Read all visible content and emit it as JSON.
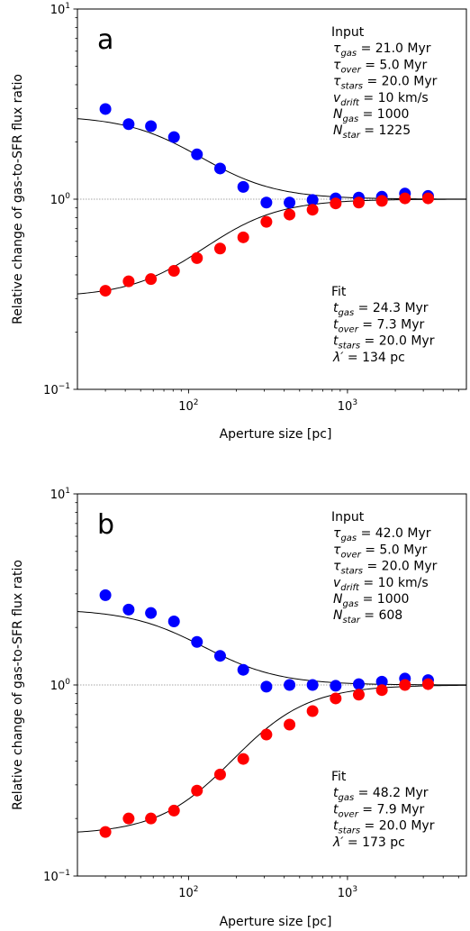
{
  "chart_data": [
    {
      "type": "scatter",
      "panel_label": "a",
      "xlabel": "Aperture size [pc]",
      "ylabel": "Relative change of gas-to-SFR flux ratio",
      "xscale": "log",
      "yscale": "log",
      "xlim": [
        20,
        5600
      ],
      "ylim": [
        0.1,
        10
      ],
      "x_ticks": [
        {
          "value": 100,
          "base": "10",
          "exp": "2"
        },
        {
          "value": 1000,
          "base": "10",
          "exp": "3"
        }
      ],
      "y_ticks": [
        {
          "value": 0.1,
          "base": "10",
          "exp": "−1"
        },
        {
          "value": 1,
          "base": "10",
          "exp": "0"
        },
        {
          "value": 10,
          "base": "10",
          "exp": "1"
        }
      ],
      "reference_line": 1,
      "series": [
        {
          "color": "#0000ff",
          "x": [
            30,
            42,
            58,
            81,
            113,
            158,
            221,
            309,
            432,
            603,
            843,
            1178,
            1646,
            2300,
            3215
          ],
          "y": [
            2.98,
            2.48,
            2.42,
            2.12,
            1.72,
            1.45,
            1.16,
            0.96,
            0.96,
            0.99,
            1.01,
            1.02,
            1.03,
            1.07,
            1.04
          ]
        },
        {
          "color": "#ff0000",
          "x": [
            30,
            42,
            58,
            81,
            113,
            158,
            221,
            309,
            432,
            603,
            843,
            1178,
            1646,
            2300,
            3215
          ],
          "y": [
            0.33,
            0.37,
            0.38,
            0.42,
            0.49,
            0.55,
            0.63,
            0.76,
            0.83,
            0.88,
            0.95,
            0.96,
            0.98,
            1.01,
            1.01
          ]
        }
      ],
      "fit_curves": {
        "color": "#000000",
        "x_min": 20,
        "x_max": 5600,
        "upper": {
          "asymptote": 2.75,
          "x_mid": 120
        },
        "lower": {
          "asymptote": 0.305,
          "x_mid": 125
        }
      },
      "annotations": {
        "input_title": "Input",
        "input_lines": [
          {
            "sym": "τ",
            "sub": "gas",
            "rest": " = 21.0 Myr"
          },
          {
            "sym": "τ",
            "sub": "over",
            "rest": " = 5.0 Myr"
          },
          {
            "sym": "τ",
            "sub": "stars",
            "rest": " = 20.0 Myr"
          },
          {
            "sym": "v",
            "sub": "drift",
            "rest": " = 10 km/s"
          },
          {
            "sym": "N",
            "sub": "gas",
            "rest": "  = 1000"
          },
          {
            "sym": "N",
            "sub": "star",
            "rest": " = 1225"
          }
        ],
        "fit_title": "Fit",
        "fit_lines": [
          {
            "sym": "t",
            "sub": "gas",
            "rest": "  = 24.3 Myr"
          },
          {
            "sym": "t",
            "sub": "over",
            "rest": " = 7.3 Myr"
          },
          {
            "sym": "t",
            "sub": "stars",
            "rest": " = 20.0 Myr"
          },
          {
            "sym": "λ′",
            "sub": "",
            "rest": " = 134 pc"
          }
        ]
      }
    },
    {
      "type": "scatter",
      "panel_label": "b",
      "xlabel": "Aperture size [pc]",
      "ylabel": "Relative change of gas-to-SFR flux ratio",
      "xscale": "log",
      "yscale": "log",
      "xlim": [
        20,
        5600
      ],
      "ylim": [
        0.1,
        10
      ],
      "x_ticks": [
        {
          "value": 100,
          "base": "10",
          "exp": "2"
        },
        {
          "value": 1000,
          "base": "10",
          "exp": "3"
        }
      ],
      "y_ticks": [
        {
          "value": 0.1,
          "base": "10",
          "exp": "−1"
        },
        {
          "value": 1,
          "base": "10",
          "exp": "0"
        },
        {
          "value": 10,
          "base": "10",
          "exp": "1"
        }
      ],
      "reference_line": 1,
      "series": [
        {
          "color": "#0000ff",
          "x": [
            30,
            42,
            58,
            81,
            113,
            158,
            221,
            309,
            432,
            603,
            843,
            1178,
            1646,
            2300,
            3215
          ],
          "y": [
            2.95,
            2.48,
            2.38,
            2.15,
            1.68,
            1.42,
            1.2,
            0.98,
            1.0,
            1.0,
            0.99,
            1.01,
            1.04,
            1.08,
            1.06
          ]
        },
        {
          "color": "#ff0000",
          "x": [
            30,
            42,
            58,
            81,
            113,
            158,
            221,
            309,
            432,
            603,
            843,
            1178,
            1646,
            2300,
            3215
          ],
          "y": [
            0.17,
            0.2,
            0.2,
            0.22,
            0.28,
            0.34,
            0.41,
            0.55,
            0.62,
            0.73,
            0.85,
            0.89,
            0.94,
            1.0,
            1.01
          ]
        }
      ],
      "fit_curves": {
        "color": "#000000",
        "x_min": 20,
        "x_max": 5600,
        "upper": {
          "asymptote": 2.5,
          "x_mid": 125
        },
        "lower": {
          "asymptote": 0.165,
          "x_mid": 190
        }
      },
      "annotations": {
        "input_title": "Input",
        "input_lines": [
          {
            "sym": "τ",
            "sub": "gas",
            "rest": " = 42.0 Myr"
          },
          {
            "sym": "τ",
            "sub": "over",
            "rest": " = 5.0 Myr"
          },
          {
            "sym": "τ",
            "sub": "stars",
            "rest": " = 20.0 Myr"
          },
          {
            "sym": "v",
            "sub": "drift",
            "rest": " = 10 km/s"
          },
          {
            "sym": "N",
            "sub": "gas",
            "rest": "  = 1000"
          },
          {
            "sym": "N",
            "sub": "star",
            "rest": " = 608"
          }
        ],
        "fit_title": "Fit",
        "fit_lines": [
          {
            "sym": "t",
            "sub": "gas",
            "rest": "  = 48.2 Myr"
          },
          {
            "sym": "t",
            "sub": "over",
            "rest": " = 7.9 Myr"
          },
          {
            "sym": "t",
            "sub": "stars",
            "rest": " = 20.0 Myr"
          },
          {
            "sym": "λ′",
            "sub": "",
            "rest": " = 173 pc"
          }
        ]
      }
    }
  ]
}
